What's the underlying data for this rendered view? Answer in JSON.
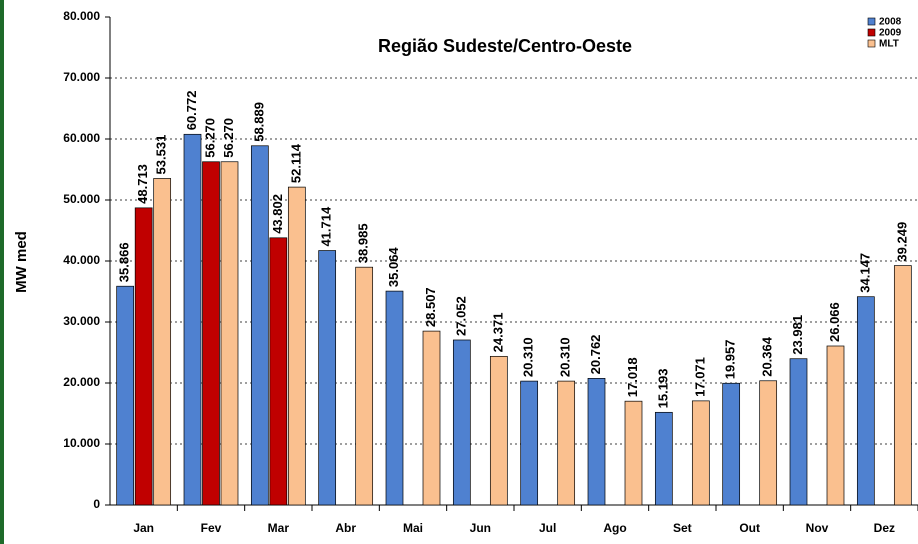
{
  "chart_data": {
    "type": "bar",
    "title": "Região Sudeste/Centro-Oeste",
    "y_label": "MW med",
    "categories": [
      "Jan",
      "Fev",
      "Mar",
      "Abr",
      "Mai",
      "Jun",
      "Jul",
      "Ago",
      "Set",
      "Out",
      "Nov",
      "Dez"
    ],
    "series": [
      {
        "name": "2008",
        "color": "#4f81d0",
        "values": [
          35866,
          60772,
          58889,
          41714,
          35064,
          27052,
          20310,
          20762,
          15193,
          19957,
          23981,
          34147
        ],
        "value_labels": [
          "35.866",
          "60.772",
          "58.889",
          "41.714",
          "35.064",
          "27.052",
          "20.310",
          "20.762",
          "15.193",
          "19.957",
          "23.981",
          "34.147"
        ]
      },
      {
        "name": "2009",
        "color": "#c00000",
        "values": [
          48713,
          56270,
          43802,
          null,
          null,
          null,
          null,
          null,
          null,
          null,
          null,
          null
        ],
        "value_labels": [
          "48.713",
          "56.270",
          "43.802",
          null,
          null,
          null,
          null,
          null,
          null,
          null,
          null,
          null
        ]
      },
      {
        "name": "MLT",
        "color": "#fac08f",
        "values": [
          53531,
          56270,
          52114,
          38985,
          28507,
          24371,
          20310,
          17018,
          17071,
          20364,
          26066,
          39249
        ],
        "value_labels": [
          "53.531",
          "56.270",
          "52.114",
          "38.985",
          "28.507",
          "24.371",
          "20.310",
          "17.018",
          "17.071",
          "20.364",
          "26.066",
          "39.249"
        ]
      }
    ],
    "ylim": [
      0,
      80000
    ],
    "yticks": [
      0,
      {
        "value": 10000,
        "label": "10.000"
      },
      {
        "value": 20000,
        "label": "20.000"
      },
      {
        "value": 30000,
        "label": "30.000"
      },
      {
        "value": 40000,
        "label": "40.000"
      },
      {
        "value": 50000,
        "label": "50.000"
      },
      {
        "value": 60000,
        "label": "60.000"
      },
      {
        "value": 70000,
        "label": "70.000"
      },
      {
        "value": 80000,
        "label": "80.000"
      }
    ],
    "grid": true,
    "legend": "upper right"
  }
}
